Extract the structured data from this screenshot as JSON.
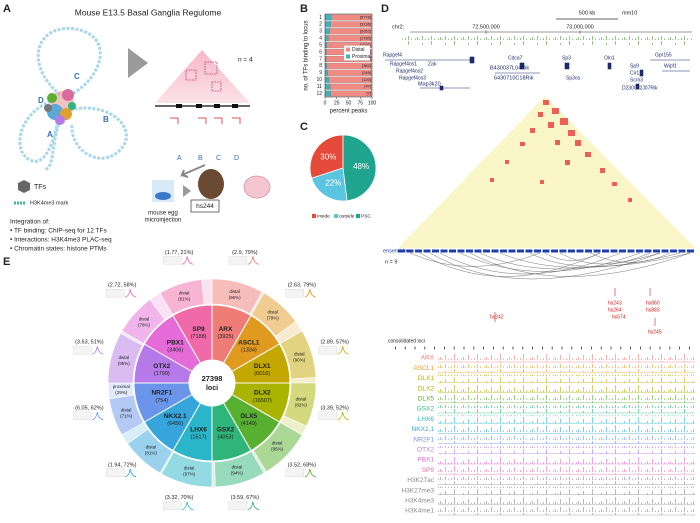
{
  "figure": {
    "A": {
      "label": "A",
      "title": "Mouse E13.5 Basal Ganglia Regulome",
      "n_label": "n = 4",
      "loop_letters": [
        "A",
        "B",
        "C",
        "D"
      ],
      "anchor_letters": [
        "A",
        "B",
        "C",
        "D"
      ],
      "legend": [
        "TFs",
        "H3K4me3 mark"
      ],
      "integration_title": "Integration of:",
      "integration_items": [
        "• TF binding: ChIP-seq for 12 TFs",
        "• Interactions: H3K4me3 PLAC-seq",
        "• Chromatin states: histone PTMs"
      ],
      "microinjection": [
        "mouse egg",
        "microinjection"
      ],
      "enhancer": "hs244"
    },
    "B": {
      "label": "B"
    },
    "C": {
      "label": "C"
    },
    "D": {
      "label": "D",
      "scale": "500 kb",
      "genome": "mm10",
      "chrom": "chr2:",
      "coords": [
        "72,500,000",
        "73,000,000"
      ],
      "genes": [
        "Rapgef4",
        "Rapgef4os1",
        "Zak",
        "Rapgef4os2",
        "Rapgef4os3",
        "Map3k20",
        "Cdca7",
        "B430037L04Rik",
        "6430710C18Rik",
        "Sp3",
        "Sp3os",
        "Olo1",
        "Gpr155",
        "Wipf1",
        "Sp9",
        "Cir1",
        "Scrn3",
        "D230022J07Rik"
      ],
      "ensembles": "ensembles",
      "n_label": "n = 9",
      "enhancers": [
        "hs242",
        "hs243",
        "hs264",
        "hs574",
        "hs860",
        "hs883",
        "hs245"
      ],
      "consolidated": "consolidated loci",
      "tracks": [
        {
          "name": "ARX",
          "color": "#f07c78"
        },
        {
          "name": "ASCL1",
          "color": "#e09a20"
        },
        {
          "name": "DLX1",
          "color": "#c4a800"
        },
        {
          "name": "DLX2",
          "color": "#a9b400"
        },
        {
          "name": "DLX5",
          "color": "#58b030"
        },
        {
          "name": "GSX2",
          "color": "#2fb57a"
        },
        {
          "name": "LHX6",
          "color": "#2ab6c8"
        },
        {
          "name": "NKX2.1",
          "color": "#35a5dc"
        },
        {
          "name": "NR2F1",
          "color": "#6a95ea"
        },
        {
          "name": "OTX2",
          "color": "#b57ae8"
        },
        {
          "name": "PBX1",
          "color": "#e56bd8"
        },
        {
          "name": "SP9",
          "color": "#f06aa8"
        },
        {
          "name": "H3K27ac",
          "color": "#8a8a8a"
        },
        {
          "name": "H3K27me3",
          "color": "#8a8a8a"
        },
        {
          "name": "H3K4me3",
          "color": "#8a8a8a"
        },
        {
          "name": "H3K4me1",
          "color": "#8a8a8a"
        }
      ]
    },
    "E": {
      "label": "E"
    }
  },
  "chart_data": [
    {
      "type": "bar",
      "orientation": "horizontal",
      "stacked": true,
      "ylabel": "no. of TFs binding to locus",
      "xlabel": "percent peaks",
      "categories": [
        "1",
        "2",
        "3",
        "4",
        "5",
        "6",
        "7",
        "8",
        "9",
        "10",
        "11",
        "12"
      ],
      "series": [
        {
          "name": "Distal",
          "color": "#f08b84",
          "values": [
            87,
            88,
            90,
            93,
            96,
            97,
            97,
            96,
            94,
            92,
            89,
            88
          ]
        },
        {
          "name": "Proximal",
          "color": "#3bb3b8",
          "values": [
            13,
            12,
            10,
            7,
            4,
            3,
            3,
            4,
            6,
            8,
            11,
            12
          ]
        }
      ],
      "count_labels": [
        "[5776]",
        "[3136]",
        "[2052]",
        "[1730]",
        "[1297]",
        "[947]",
        "[632]",
        "[382]",
        "[249]",
        "[120]",
        "[47]",
        "[7]"
      ],
      "xlim": [
        0,
        100
      ],
      "xticks": [
        0,
        25,
        50,
        75,
        100
      ],
      "legend": "center right"
    },
    {
      "type": "pie",
      "categories": [
        "Inside",
        "outside",
        "PSC"
      ],
      "values": [
        30,
        22,
        48
      ],
      "value_labels": [
        "30%",
        "22%",
        "48%"
      ],
      "colors": [
        "#e5493a",
        "#5bc4e0",
        "#1fa58f"
      ]
    },
    {
      "type": "sunburst",
      "center_label": "27398",
      "center_sublabel": "loci",
      "categories": [
        "ARX",
        "ASCL1",
        "DLX1",
        "DLX2",
        "DLX5",
        "GSX2",
        "LHX6",
        "NKX2.1",
        "NR2F1",
        "OTX2",
        "PBX1",
        "SP9"
      ],
      "count_labels": [
        "(3925)",
        "(1334)",
        "(6016)",
        "(16507)",
        "(4149)",
        "(4053)",
        "(1517)",
        "(6456)",
        "(754)",
        "(1799)",
        "(3406)",
        "(7188)"
      ],
      "colors": [
        "#f07c78",
        "#e09a20",
        "#c4a800",
        "#a9b400",
        "#58b030",
        "#2fb57a",
        "#2ab6c8",
        "#35a5dc",
        "#6a95ea",
        "#b57ae8",
        "#e56bd8",
        "#f06aa8"
      ],
      "distal": {
        "word": "distal",
        "values": [
          96,
          79,
          90,
          82,
          95,
          94,
          97,
          81,
          71,
          95,
          78,
          81
        ],
        "value_labels": [
          "(96%)",
          "(79%)",
          "(90%)",
          "(82%)",
          "(95%)",
          "(94%)",
          "(97%)",
          "(81%)",
          "(71%)",
          "(95%)",
          "(78%)",
          "(81%)"
        ]
      },
      "proximal": {
        "word": "proximal",
        "value_labels": [
          null,
          null,
          null,
          null,
          null,
          null,
          null,
          null,
          "(29%)",
          null,
          null,
          null
        ]
      },
      "motif_stats": [
        "(2.9, 79%)",
        "(2.63, 79%)",
        "(2.89, 57%)",
        "(3.39, 52%)",
        "(3.52, 68%)",
        "(3.59, 67%)",
        "(3.32, 70%)",
        "(1.94, 72%)",
        "(6.05, 62%)",
        "(3.63, 51%)",
        "(2.72, 58%)",
        "(1.77, 21%)"
      ]
    }
  ]
}
